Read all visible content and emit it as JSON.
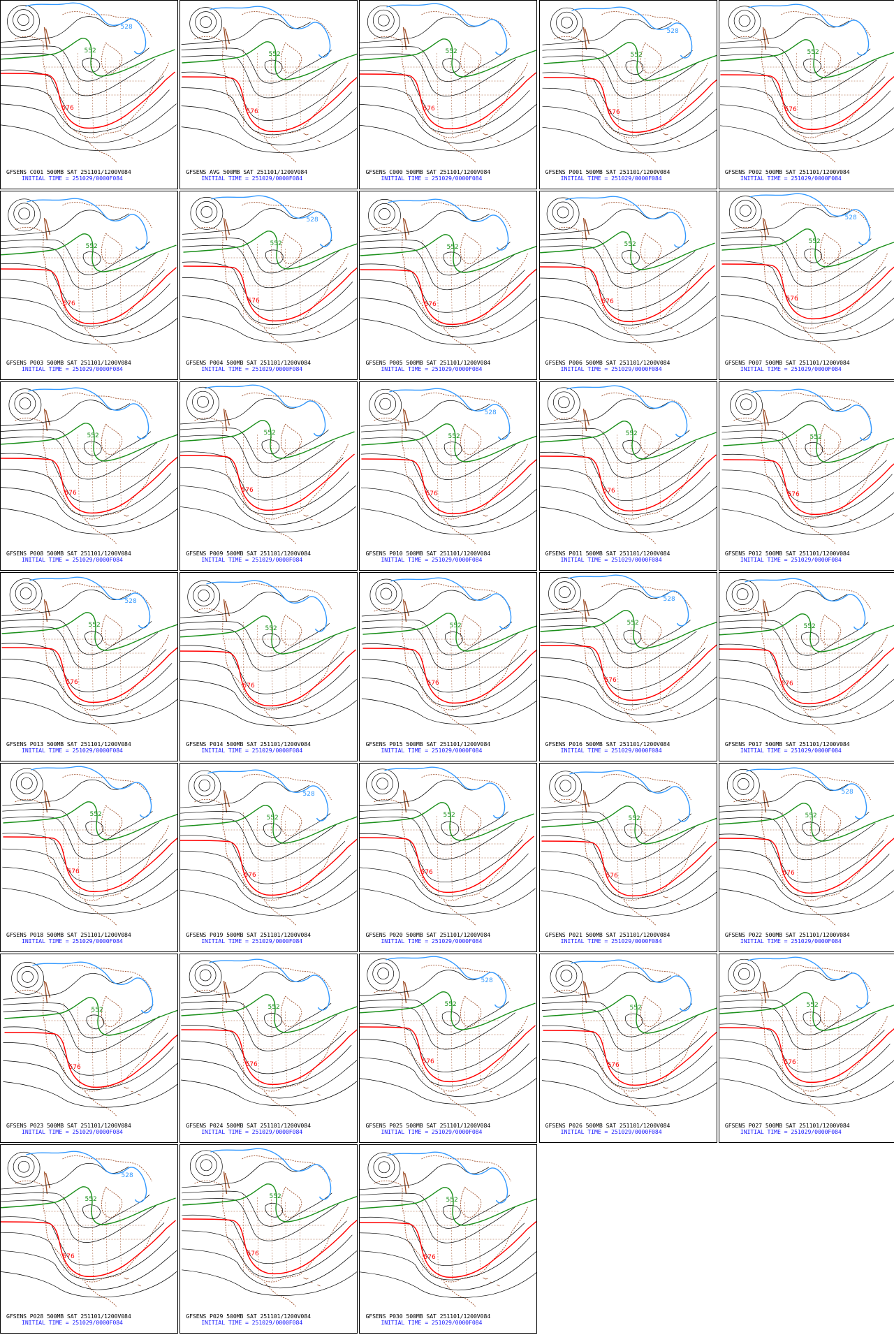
{
  "colors": {
    "height_contour": "#000000",
    "contour_552": "#1a8f1a",
    "contour_576": "#ff0000",
    "contour_528": "#3399ff",
    "geography": "#a0522d",
    "initial_time_text": "#1a1aff"
  },
  "contour_labels": {
    "low": "528",
    "mid": "552",
    "high": "576"
  },
  "panels": [
    {
      "title": "GFSENS C001 500MB SAT 251101/1200V084",
      "init": "INITIAL TIME = 251029/0000F084"
    },
    {
      "title": "GFSENS AVG 500MB SAT 251101/1200V084",
      "init": "INITIAL TIME = 251029/0000F084"
    },
    {
      "title": "GFSENS C000 500MB SAT 251101/1200V084",
      "init": "INITIAL TIME = 251029/0000F084"
    },
    {
      "title": "GFSENS P001 500MB SAT 251101/1200V084",
      "init": "INITIAL TIME = 251029/0000F084"
    },
    {
      "title": "GFSENS P002 500MB SAT 251101/1200V084",
      "init": "INITIAL TIME = 251029/0000F084"
    },
    {
      "title": "GFSENS P003 500MB SAT 251101/1200V084",
      "init": "INITIAL TIME = 251029/0000F084"
    },
    {
      "title": "GFSENS P004 500MB SAT 251101/1200V084",
      "init": "INITIAL TIME = 251029/0000F084"
    },
    {
      "title": "GFSENS P005 500MB SAT 251101/1200V084",
      "init": "INITIAL TIME = 251029/0000F084"
    },
    {
      "title": "GFSENS P006 500MB SAT 251101/1200V084",
      "init": "INITIAL TIME = 251029/0000F084"
    },
    {
      "title": "GFSENS P007 500MB SAT 251101/1200V084",
      "init": "INITIAL TIME = 251029/0000F084"
    },
    {
      "title": "GFSENS P008 500MB SAT 251101/1200V084",
      "init": "INITIAL TIME = 251029/0000F084"
    },
    {
      "title": "GFSENS P009 500MB SAT 251101/1200V084",
      "init": "INITIAL TIME = 251029/0000F084"
    },
    {
      "title": "GFSENS P010 500MB SAT 251101/1200V084",
      "init": "INITIAL TIME = 251029/0000F084"
    },
    {
      "title": "GFSENS P011 500MB SAT 251101/1200V084",
      "init": "INITIAL TIME = 251029/0000F084"
    },
    {
      "title": "GFSENS P012 500MB SAT 251101/1200V084",
      "init": "INITIAL TIME = 251029/0000F084"
    },
    {
      "title": "GFSENS P013 500MB SAT 251101/1200V084",
      "init": "INITIAL TIME = 251029/0000F084"
    },
    {
      "title": "GFSENS P014 500MB SAT 251101/1200V084",
      "init": "INITIAL TIME = 251029/0000F084"
    },
    {
      "title": "GFSENS P015 500MB SAT 251101/1200V084",
      "init": "INITIAL TIME = 251029/0000F084"
    },
    {
      "title": "GFSENS P016 500MB SAT 251101/1200V084",
      "init": "INITIAL TIME = 251029/0000F084"
    },
    {
      "title": "GFSENS P017 500MB SAT 251101/1200V084",
      "init": "INITIAL TIME = 251029/0000F084"
    },
    {
      "title": "GFSENS P018 500MB SAT 251101/1200V084",
      "init": "INITIAL TIME = 251029/0000F084"
    },
    {
      "title": "GFSENS P019 500MB SAT 251101/1200V084",
      "init": "INITIAL TIME = 251029/0000F084"
    },
    {
      "title": "GFSENS P020 500MB SAT 251101/1200V084",
      "init": "INITIAL TIME = 251029/0000F084"
    },
    {
      "title": "GFSENS P021 500MB SAT 251101/1200V084",
      "init": "INITIAL TIME = 251029/0000F084"
    },
    {
      "title": "GFSENS P022 500MB SAT 251101/1200V084",
      "init": "INITIAL TIME = 251029/0000F084"
    },
    {
      "title": "GFSENS P023 500MB SAT 251101/1200V084",
      "init": "INITIAL TIME = 251029/0000F084"
    },
    {
      "title": "GFSENS P024 500MB SAT 251101/1200V084",
      "init": "INITIAL TIME = 251029/0000F084"
    },
    {
      "title": "GFSENS P025 500MB SAT 251101/1200V084",
      "init": "INITIAL TIME = 251029/0000F084"
    },
    {
      "title": "GFSENS P026 500MB SAT 251101/1200V084",
      "init": "INITIAL TIME = 251029/0000F084"
    },
    {
      "title": "GFSENS P027 500MB SAT 251101/1200V084",
      "init": "INITIAL TIME = 251029/0000F084"
    },
    {
      "title": "GFSENS P028 500MB SAT 251101/1200V084",
      "init": "INITIAL TIME = 251029/0000F084"
    },
    {
      "title": "GFSENS P029 500MB SAT 251101/1200V084",
      "init": "INITIAL TIME = 251029/0000F084"
    },
    {
      "title": "GFSENS P030 500MB SAT 251101/1200V084",
      "init": "INITIAL TIME = 251029/0000F084"
    }
  ]
}
